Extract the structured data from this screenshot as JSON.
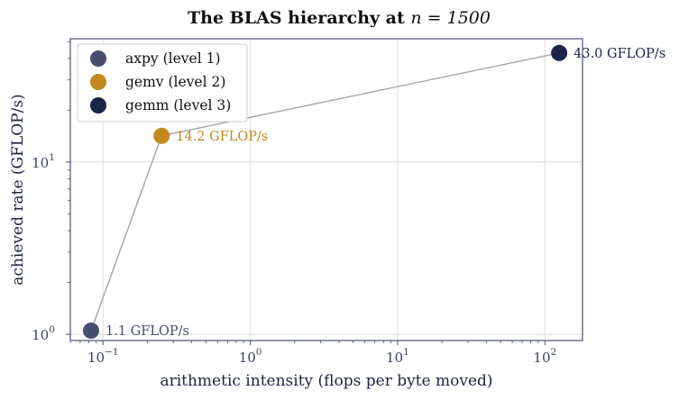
{
  "chart_data": {
    "type": "scatter",
    "title_prefix": "The BLAS hierarchy at ",
    "title_math": "n = 1500",
    "xlabel": "arithmetic intensity (flops per byte moved)",
    "ylabel": "achieved rate (GFLOP/s)",
    "xscale": "log",
    "yscale": "log",
    "xlim": [
      0.06,
      180
    ],
    "ylim": [
      0.92,
      52
    ],
    "x_ticks": [
      {
        "value": 0.1,
        "base": "10",
        "exp": "−1"
      },
      {
        "value": 1,
        "base": "10",
        "exp": "0"
      },
      {
        "value": 10,
        "base": "10",
        "exp": "1"
      },
      {
        "value": 100,
        "base": "10",
        "exp": "2"
      }
    ],
    "y_ticks": [
      {
        "value": 1,
        "base": "10",
        "exp": "0"
      },
      {
        "value": 10,
        "base": "10",
        "exp": "1"
      }
    ],
    "grid": true,
    "legend_position": "top-left",
    "connect_points": true,
    "connector_color": "#a3a3b0",
    "series": [
      {
        "name": "axpy (level 1)",
        "x": 0.083,
        "y": 1.05,
        "label": "1.1 GFLOP/s",
        "color": "#46506e"
      },
      {
        "name": "gemv (level 2)",
        "x": 0.25,
        "y": 14.2,
        "label": "14.2 GFLOP/s",
        "color": "#c28a1f"
      },
      {
        "name": "gemm (level 3)",
        "x": 125,
        "y": 43.0,
        "label": "43.0 GFLOP/s",
        "color": "#1a2547"
      }
    ]
  }
}
